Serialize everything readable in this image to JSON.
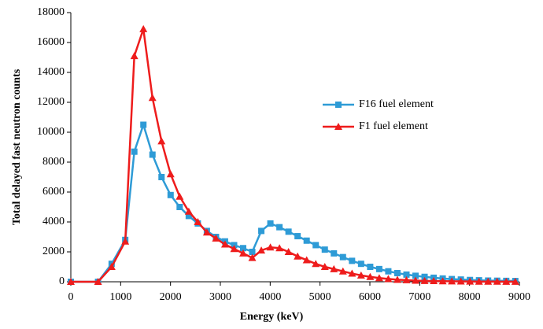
{
  "chart_data": {
    "type": "line",
    "x_label": "Energy (keV)",
    "y_label": "Total delayed fast neutron counts",
    "x": [
      0,
      546,
      819,
      1092,
      1274,
      1456,
      1638,
      1820,
      2002,
      2184,
      2366,
      2548,
      2730,
      2912,
      3094,
      3276,
      3458,
      3640,
      3822,
      4004,
      4186,
      4368,
      4550,
      4732,
      4914,
      5096,
      5278,
      5460,
      5642,
      5824,
      6006,
      6188,
      6370,
      6552,
      6734,
      6916,
      7098,
      7280,
      7462,
      7644,
      7826,
      8008,
      8190,
      8372,
      8554,
      8736,
      8918
    ],
    "series": [
      {
        "name": "F16 fuel element",
        "color": "#2e9bd6",
        "marker": "square",
        "values": [
          0,
          0,
          1200,
          2800,
          8700,
          10500,
          8500,
          7000,
          5800,
          5000,
          4400,
          3900,
          3400,
          3000,
          2700,
          2450,
          2250,
          2000,
          3400,
          3900,
          3650,
          3350,
          3050,
          2750,
          2450,
          2150,
          1900,
          1650,
          1400,
          1200,
          1000,
          850,
          700,
          580,
          480,
          400,
          330,
          270,
          220,
          180,
          150,
          120,
          100,
          80,
          70,
          60,
          50
        ]
      },
      {
        "name": "F1 fuel element",
        "color": "#ee1c1c",
        "marker": "triangle",
        "values": [
          0,
          0,
          1000,
          2700,
          15100,
          16900,
          12300,
          9400,
          7200,
          5700,
          4700,
          4000,
          3300,
          2900,
          2500,
          2200,
          1900,
          1600,
          2100,
          2300,
          2250,
          2000,
          1700,
          1450,
          1200,
          1000,
          850,
          700,
          550,
          430,
          330,
          250,
          190,
          140,
          110,
          80,
          60,
          50,
          40,
          30,
          25,
          20,
          15,
          12,
          10,
          8,
          6
        ]
      }
    ],
    "xlim": [
      0,
      9000
    ],
    "xticks": [
      0,
      1000,
      2000,
      3000,
      4000,
      5000,
      6000,
      7000,
      8000,
      9000
    ],
    "ylim": [
      0,
      18000
    ],
    "yticks": [
      0,
      2000,
      4000,
      6000,
      8000,
      10000,
      12000,
      14000,
      16000,
      18000
    ],
    "grid": false
  }
}
